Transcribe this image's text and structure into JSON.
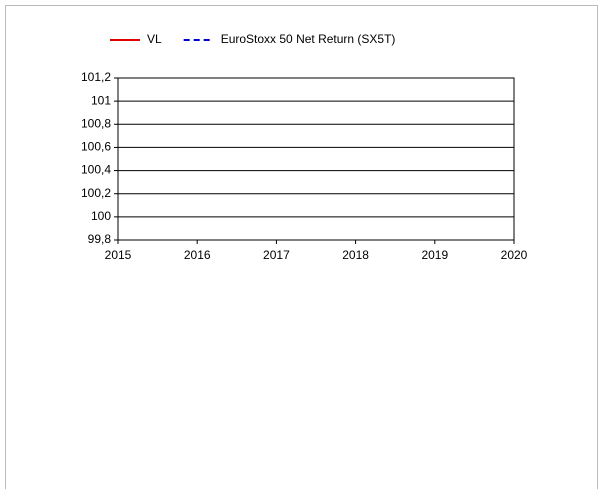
{
  "chart_data": {
    "type": "line",
    "x": [],
    "series": [
      {
        "name": "VL",
        "color": "#e00000",
        "dash": "solid",
        "values": []
      },
      {
        "name": "EuroStoxx 50 Net Return (SX5T)",
        "color": "#0000d0",
        "dash": "dashed",
        "values": []
      }
    ],
    "xlim": [
      2015,
      2020
    ],
    "xticks": [
      2015,
      2016,
      2017,
      2018,
      2019,
      2020
    ],
    "ylim": [
      99.8,
      101.2
    ],
    "yticks": [
      {
        "value": 99.8,
        "label": "99,8"
      },
      100,
      {
        "value": 100.2,
        "label": "100,2"
      },
      {
        "value": 100.4,
        "label": "100,4"
      },
      {
        "value": 100.6,
        "label": "100,6"
      },
      {
        "value": 100.8,
        "label": "100,8"
      },
      101,
      {
        "value": 101.2,
        "label": "101,2"
      }
    ],
    "grid": true,
    "legend": "top"
  }
}
